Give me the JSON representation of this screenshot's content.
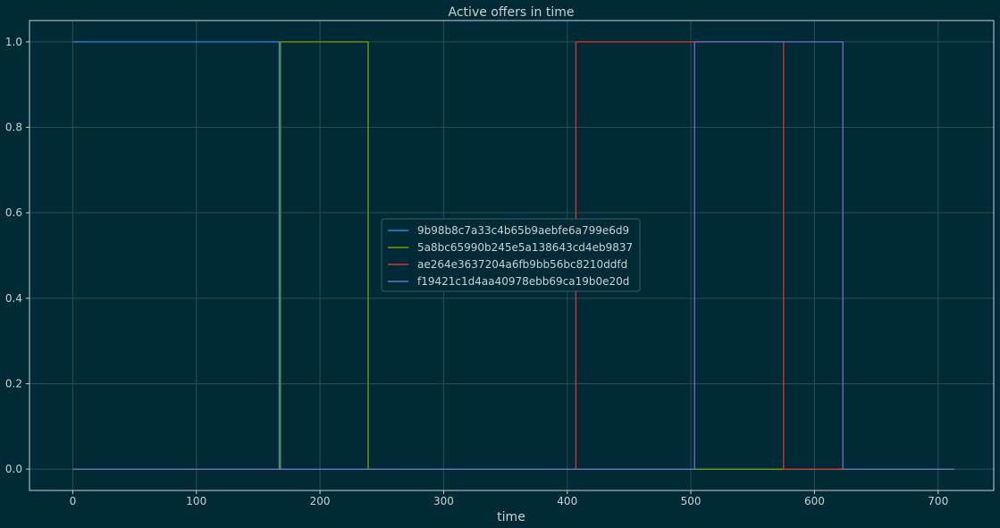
{
  "chart_data": {
    "type": "line",
    "title": "Active offers in time",
    "xlabel": "time",
    "ylabel": "",
    "xlim": [
      -35,
      745
    ],
    "ylim": [
      -0.05,
      1.05
    ],
    "xticks": [
      0,
      100,
      200,
      300,
      400,
      500,
      600,
      700
    ],
    "yticks": [
      0.0,
      0.2,
      0.4,
      0.6,
      0.8,
      1.0
    ],
    "xtick_labels": [
      "0",
      "100",
      "200",
      "300",
      "400",
      "500",
      "600",
      "700"
    ],
    "ytick_labels": [
      "0.0",
      "0.2",
      "0.4",
      "0.6",
      "0.8",
      "1.0"
    ],
    "grid": true,
    "legend_position": "center",
    "series": [
      {
        "name": "9b98b8c7a33c4b65b9aebfe6a799e6d9",
        "color": "#268bd2",
        "x": [
          0,
          167,
          167,
          713
        ],
        "y": [
          1,
          1,
          0,
          0
        ]
      },
      {
        "name": "5a8bc65990b245e5a138643cd4eb9837",
        "color": "#859900",
        "x": [
          0,
          168,
          168,
          239,
          239,
          713
        ],
        "y": [
          0,
          0,
          1,
          1,
          0,
          0
        ]
      },
      {
        "name": "ae264e3637204a6fb9bb56bc8210ddfd",
        "color": "#dc322f",
        "x": [
          0,
          407,
          407,
          575,
          575,
          713
        ],
        "y": [
          0,
          0,
          1,
          1,
          0,
          0
        ]
      },
      {
        "name": "f19421c1d4aa40978ebb69ca19b0e20d",
        "color": "#6c71c4",
        "x": [
          0,
          503,
          503,
          623,
          623,
          713
        ],
        "y": [
          0,
          0,
          1,
          1,
          0,
          0
        ]
      }
    ]
  }
}
